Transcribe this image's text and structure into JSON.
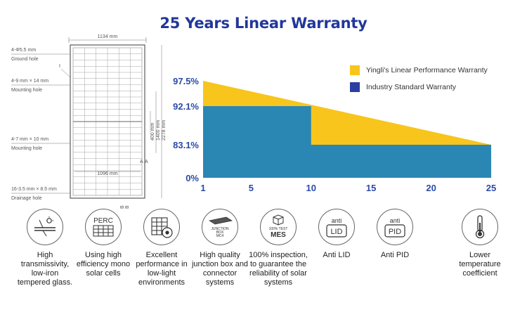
{
  "title": "25 Years Linear Warranty",
  "panel": {
    "width": "1134 mm",
    "inner_width": "1096 mm",
    "lengths": [
      "400 mm",
      "1400 mm",
      "2278 mm"
    ],
    "section_marks": [
      "A",
      "A",
      "B",
      "B"
    ],
    "marker": "I",
    "holes": [
      {
        "size": "4-Φ5.5 mm",
        "name": "Ground hole"
      },
      {
        "size": "4-9 mm × 14 mm",
        "name": "Mounting hole"
      },
      {
        "size": "4-7 mm × 10 mm",
        "name": "Mounting hole"
      },
      {
        "size": "16-3.5 mm × 8.5 mm",
        "name": "Drainage hole"
      }
    ]
  },
  "chart_data": {
    "type": "area",
    "x_ticks": [
      "1",
      "5",
      "10",
      "15",
      "20",
      "25"
    ],
    "y_ticks": [
      "97.5%",
      "92.1%",
      "83.1%",
      "0%"
    ],
    "xlim": [
      1,
      25
    ],
    "series": [
      {
        "name": "Yingli's Linear Performance Warranty",
        "color": "#f7c51c",
        "points": [
          [
            1,
            97.5
          ],
          [
            25,
            83.1
          ]
        ]
      },
      {
        "name": "Industry Standard Warranty",
        "color": "#2a87b3",
        "points": [
          [
            1,
            92.1
          ],
          [
            10,
            92.1
          ],
          [
            10,
            83.1
          ],
          [
            25,
            83.1
          ]
        ]
      }
    ]
  },
  "legend": [
    {
      "label": "Yingli's Linear Performance Warranty",
      "color": "#f7c51c"
    },
    {
      "label": "Industry Standard Warranty",
      "color": "#2c3e9f"
    }
  ],
  "features": [
    {
      "icon": "glass-icon",
      "label": "High transmissivity, low-iron tempered glass."
    },
    {
      "icon": "perc-cell-icon",
      "icon_text": "PERC",
      "label": "Using high efficiency mono solar cells"
    },
    {
      "icon": "low-light-cell-icon",
      "label": "Excellent performance in low-light environments"
    },
    {
      "icon": "junction-box-icon",
      "icon_text": [
        "JUNCTION",
        "BOX",
        "MC4"
      ],
      "label": "High quality junction box and connector systems"
    },
    {
      "icon": "mes-icon",
      "icon_text": [
        "100% TEST",
        "MES"
      ],
      "label": "100% inspection, to guarantee the reliability of solar systems"
    },
    {
      "icon": "anti-lid-icon",
      "icon_text": [
        "anti",
        "LID"
      ],
      "label": "Anti LID"
    },
    {
      "icon": "anti-pid-icon",
      "icon_text": [
        "anti",
        "PID"
      ],
      "label": "Anti PID"
    },
    {
      "icon": "thermometer-icon",
      "label": "Lower temperature coefficient"
    }
  ]
}
